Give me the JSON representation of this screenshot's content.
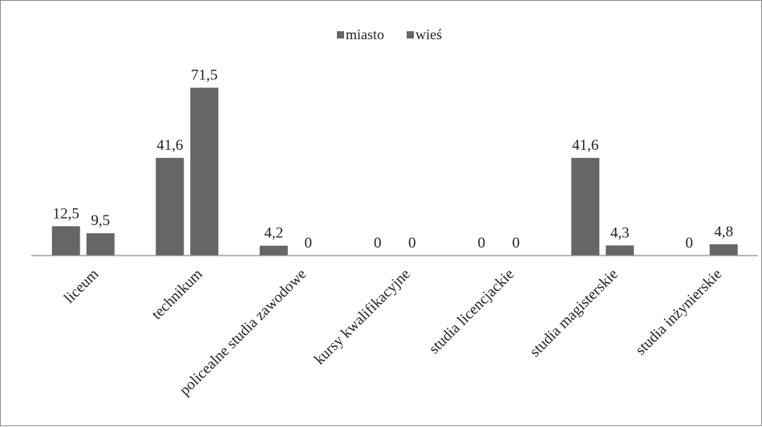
{
  "chart_data": {
    "type": "bar",
    "title": "",
    "xlabel": "",
    "ylabel": "",
    "categories": [
      "liceum",
      "technikum",
      "policealne studia zawodowe",
      "kursy kwalifikacyjne",
      "studia licencjackie",
      "studia magisterskie",
      "studia inżynierskie"
    ],
    "series": [
      {
        "name": "miasto",
        "values": [
          12.5,
          41.6,
          4.2,
          0,
          0,
          41.6,
          0
        ],
        "labels": [
          "12,5",
          "41,6",
          "4,2",
          "0",
          "0",
          "41,6",
          "0"
        ],
        "color": "#666666"
      },
      {
        "name": "wieś",
        "values": [
          9.5,
          71.5,
          0,
          0,
          0,
          4.3,
          4.8
        ],
        "labels": [
          "9,5",
          "71,5",
          "0",
          "0",
          "0",
          "4,3",
          "4,8"
        ],
        "color": "#666666"
      }
    ],
    "ylim": [
      0,
      80
    ],
    "grid": false,
    "legend": "top-center"
  }
}
